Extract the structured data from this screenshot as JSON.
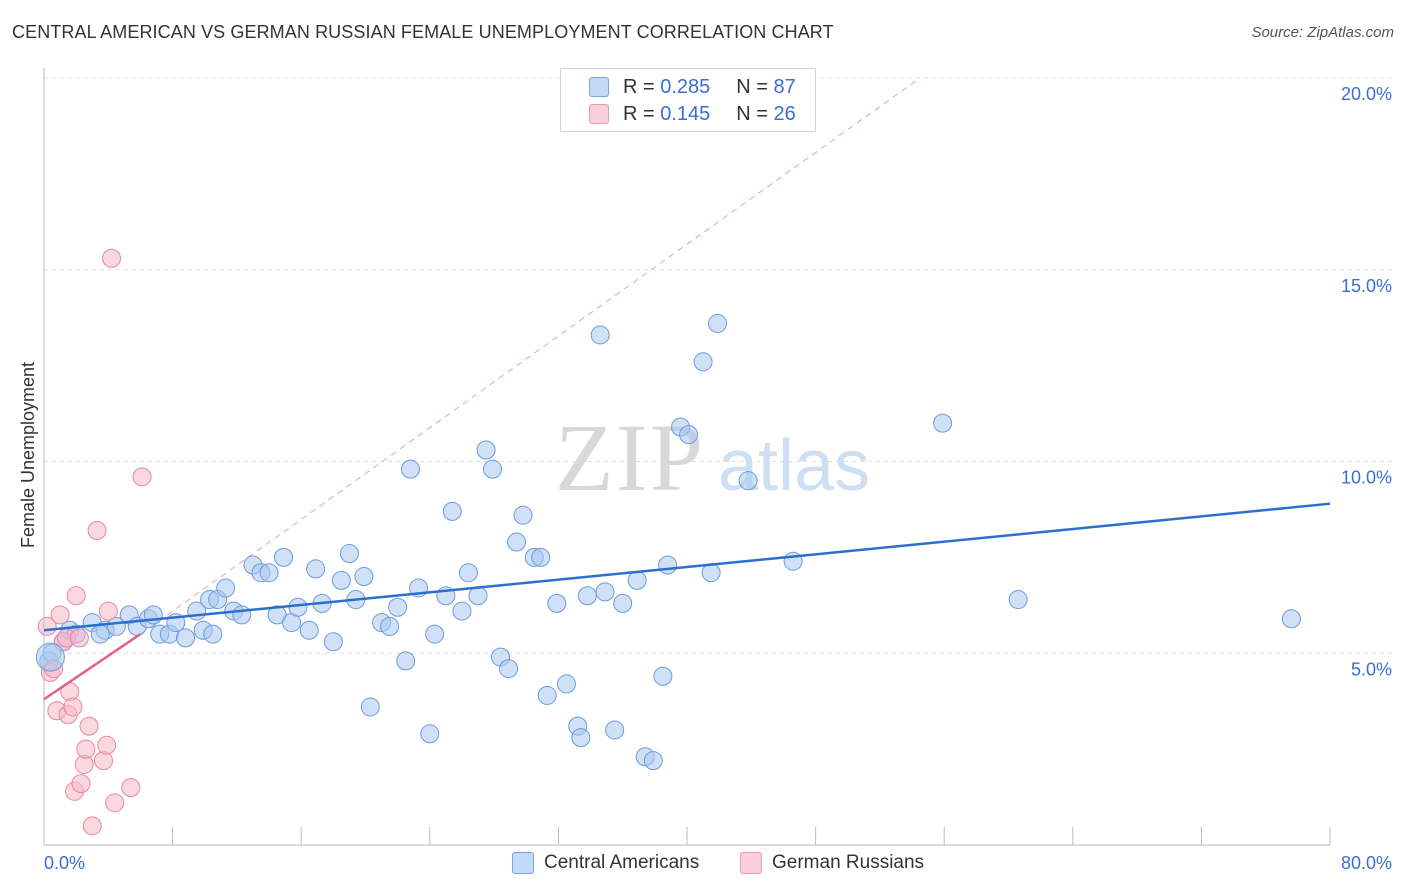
{
  "header": {
    "title": "CENTRAL AMERICAN VS GERMAN RUSSIAN FEMALE UNEMPLOYMENT CORRELATION CHART",
    "source": "Source: ZipAtlas.com"
  },
  "watermark": {
    "zip": "ZIP",
    "atlas": "atlas"
  },
  "legend_top": [
    {
      "r_label": "R =",
      "r_value": "0.285",
      "n_label": "N =",
      "n_value": "87",
      "color": "#a9c8f0"
    },
    {
      "r_label": "R =",
      "r_value": "0.145",
      "n_label": "N =",
      "n_value": "26",
      "color": "#f5b8cb"
    }
  ],
  "legend_bottom": [
    {
      "label": "Central Americans",
      "color": "#a9c8f0"
    },
    {
      "label": "German Russians",
      "color": "#f5b8cb"
    }
  ],
  "chart_data": {
    "type": "scatter",
    "title": "CENTRAL AMERICAN VS GERMAN RUSSIAN FEMALE UNEMPLOYMENT CORRELATION CHART",
    "xlabel": "",
    "ylabel": "Female Unemployment",
    "xlim": [
      0,
      80
    ],
    "ylim": [
      0,
      20
    ],
    "x_tick_labels": [
      "0.0%",
      "80.0%"
    ],
    "y_ticks": [
      5,
      10,
      15,
      20
    ],
    "y_tick_labels": [
      "5.0%",
      "10.0%",
      "15.0%",
      "20.0%"
    ],
    "grid": true,
    "series": [
      {
        "name": "Central Americans",
        "color": "#a9c8f0",
        "stroke": "#6b9bd8",
        "trend_color": "#2a6fd0",
        "trend": {
          "x0": 0,
          "y0": 5.6,
          "x1": 80,
          "y1": 8.9
        },
        "points": [
          [
            0.3,
            4.8
          ],
          [
            0.5,
            5.0
          ],
          [
            1.2,
            5.3
          ],
          [
            1.6,
            5.6
          ],
          [
            2.0,
            5.5
          ],
          [
            3.0,
            5.8
          ],
          [
            3.8,
            5.6
          ],
          [
            4.5,
            5.7
          ],
          [
            5.3,
            6.0
          ],
          [
            5.8,
            5.7
          ],
          [
            6.5,
            5.9
          ],
          [
            6.8,
            6.0
          ],
          [
            7.2,
            5.5
          ],
          [
            7.8,
            5.5
          ],
          [
            8.2,
            5.8
          ],
          [
            8.8,
            5.4
          ],
          [
            9.5,
            6.1
          ],
          [
            9.9,
            5.6
          ],
          [
            10.3,
            6.4
          ],
          [
            10.8,
            6.4
          ],
          [
            11.3,
            6.7
          ],
          [
            11.8,
            6.1
          ],
          [
            12.3,
            6.0
          ],
          [
            13.0,
            7.3
          ],
          [
            13.5,
            7.1
          ],
          [
            14.0,
            7.1
          ],
          [
            14.5,
            6.0
          ],
          [
            14.9,
            7.5
          ],
          [
            15.4,
            5.8
          ],
          [
            15.8,
            6.2
          ],
          [
            16.5,
            5.6
          ],
          [
            16.9,
            7.2
          ],
          [
            17.3,
            6.3
          ],
          [
            18.0,
            5.3
          ],
          [
            18.5,
            6.9
          ],
          [
            19.0,
            7.6
          ],
          [
            19.4,
            6.4
          ],
          [
            19.9,
            7.0
          ],
          [
            20.3,
            3.6
          ],
          [
            21.0,
            5.8
          ],
          [
            21.5,
            5.7
          ],
          [
            22.0,
            6.2
          ],
          [
            22.5,
            4.8
          ],
          [
            22.8,
            9.8
          ],
          [
            23.3,
            6.7
          ],
          [
            24.0,
            2.9
          ],
          [
            24.3,
            5.5
          ],
          [
            25.0,
            6.5
          ],
          [
            25.4,
            8.7
          ],
          [
            26.0,
            6.1
          ],
          [
            26.4,
            7.1
          ],
          [
            27.0,
            6.5
          ],
          [
            27.5,
            10.3
          ],
          [
            27.9,
            9.8
          ],
          [
            28.4,
            4.9
          ],
          [
            28.9,
            4.6
          ],
          [
            29.4,
            7.9
          ],
          [
            29.8,
            8.6
          ],
          [
            30.5,
            7.5
          ],
          [
            30.9,
            7.5
          ],
          [
            31.3,
            3.9
          ],
          [
            31.9,
            6.3
          ],
          [
            32.5,
            4.2
          ],
          [
            33.2,
            3.1
          ],
          [
            33.4,
            2.8
          ],
          [
            33.8,
            6.5
          ],
          [
            34.6,
            13.3
          ],
          [
            34.9,
            6.6
          ],
          [
            35.5,
            3.0
          ],
          [
            36.0,
            6.3
          ],
          [
            36.9,
            6.9
          ],
          [
            37.4,
            2.3
          ],
          [
            37.9,
            2.2
          ],
          [
            38.5,
            4.4
          ],
          [
            38.8,
            7.3
          ],
          [
            39.6,
            10.9
          ],
          [
            40.1,
            10.7
          ],
          [
            41.0,
            12.6
          ],
          [
            41.5,
            7.1
          ],
          [
            41.9,
            13.6
          ],
          [
            43.8,
            9.5
          ],
          [
            46.6,
            7.4
          ],
          [
            55.9,
            11.0
          ],
          [
            60.6,
            6.4
          ],
          [
            77.6,
            5.9
          ],
          [
            3.5,
            5.5
          ],
          [
            10.5,
            5.5
          ]
        ]
      },
      {
        "name": "German Russians",
        "color": "#f5b8cb",
        "stroke": "#e8879f",
        "trend_color": "#e0608a",
        "trend": {
          "x0": 0,
          "y0": 3.8,
          "x1": 6.0,
          "y1": 5.5
        },
        "points": [
          [
            0.2,
            5.7
          ],
          [
            0.4,
            4.5
          ],
          [
            0.6,
            4.6
          ],
          [
            0.8,
            3.5
          ],
          [
            1.0,
            6.0
          ],
          [
            1.2,
            5.3
          ],
          [
            1.4,
            5.4
          ],
          [
            1.5,
            3.4
          ],
          [
            1.6,
            4.0
          ],
          [
            1.8,
            3.6
          ],
          [
            1.9,
            1.4
          ],
          [
            2.0,
            6.5
          ],
          [
            2.2,
            5.4
          ],
          [
            2.3,
            1.6
          ],
          [
            2.5,
            2.1
          ],
          [
            2.6,
            2.5
          ],
          [
            2.8,
            3.1
          ],
          [
            3.0,
            0.5
          ],
          [
            3.3,
            8.2
          ],
          [
            3.7,
            2.2
          ],
          [
            3.9,
            2.6
          ],
          [
            4.0,
            6.1
          ],
          [
            4.2,
            15.3
          ],
          [
            4.4,
            1.1
          ],
          [
            5.4,
            1.5
          ],
          [
            6.1,
            9.6
          ]
        ]
      }
    ],
    "reference_line": {
      "style": "dashed",
      "color": "#e8a0b4",
      "x0": 6.0,
      "y0": 5.5,
      "x1": 54.5,
      "y1": 20.0
    }
  }
}
